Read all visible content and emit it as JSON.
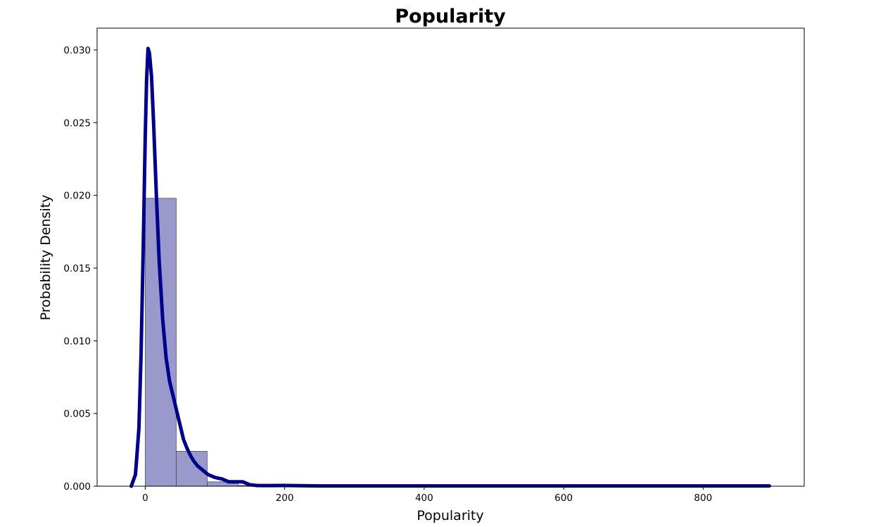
{
  "chart_data": {
    "type": "bar",
    "title": "Popularity",
    "xlabel": "Popularity",
    "ylabel": "Probability Density",
    "xlim": [
      -69,
      945
    ],
    "ylim": [
      0,
      0.0315
    ],
    "x_ticks": [
      0,
      200,
      400,
      600,
      800
    ],
    "x_tick_labels": [
      "0",
      "200",
      "400",
      "600",
      "800"
    ],
    "y_ticks": [
      0.0,
      0.005,
      0.01,
      0.015,
      0.02,
      0.025,
      0.03
    ],
    "y_tick_labels": [
      "0.000",
      "0.005",
      "0.010",
      "0.015",
      "0.020",
      "0.025",
      "0.030"
    ],
    "grid": false,
    "histogram": {
      "bin_edges": [
        0,
        44.4,
        88.8,
        133.2,
        177.6,
        222.0,
        266.4,
        310.8,
        355.2,
        399.6,
        444.0,
        488.4,
        532.8,
        577.2,
        621.6,
        666.0,
        710.4,
        754.8,
        799.2,
        843.6,
        888.0
      ],
      "values": [
        0.0198,
        0.0024,
        0.0003,
        5e-05,
        1e-05,
        0,
        0,
        0,
        0,
        0,
        0,
        0,
        0,
        0,
        0,
        0,
        0,
        0,
        0,
        0
      ],
      "color": "#9999cc"
    },
    "density_curve": {
      "color": "#00008b",
      "x": [
        -20,
        -14,
        -9,
        -6,
        -3,
        0,
        2,
        4,
        6,
        9,
        12,
        16,
        20,
        25,
        30,
        35,
        40,
        45,
        50,
        55,
        60,
        65,
        70,
        75,
        80,
        90,
        100,
        110,
        120,
        130,
        140,
        150,
        160,
        170,
        200,
        250,
        300,
        400,
        500,
        600,
        700,
        800,
        895
      ],
      "y": [
        0.0,
        0.0008,
        0.004,
        0.009,
        0.016,
        0.024,
        0.028,
        0.0301,
        0.0298,
        0.0282,
        0.025,
        0.02,
        0.0155,
        0.0115,
        0.0088,
        0.0072,
        0.0062,
        0.0052,
        0.0042,
        0.0032,
        0.0026,
        0.0021,
        0.0017,
        0.0014,
        0.0012,
        0.0008,
        0.0006,
        0.0005,
        0.0003,
        0.0003,
        0.0003,
        0.0001,
        5e-05,
        4e-05,
        5e-05,
        2e-05,
        2e-05,
        2e-05,
        2e-05,
        2e-05,
        2e-05,
        2e-05,
        2e-05
      ]
    }
  }
}
